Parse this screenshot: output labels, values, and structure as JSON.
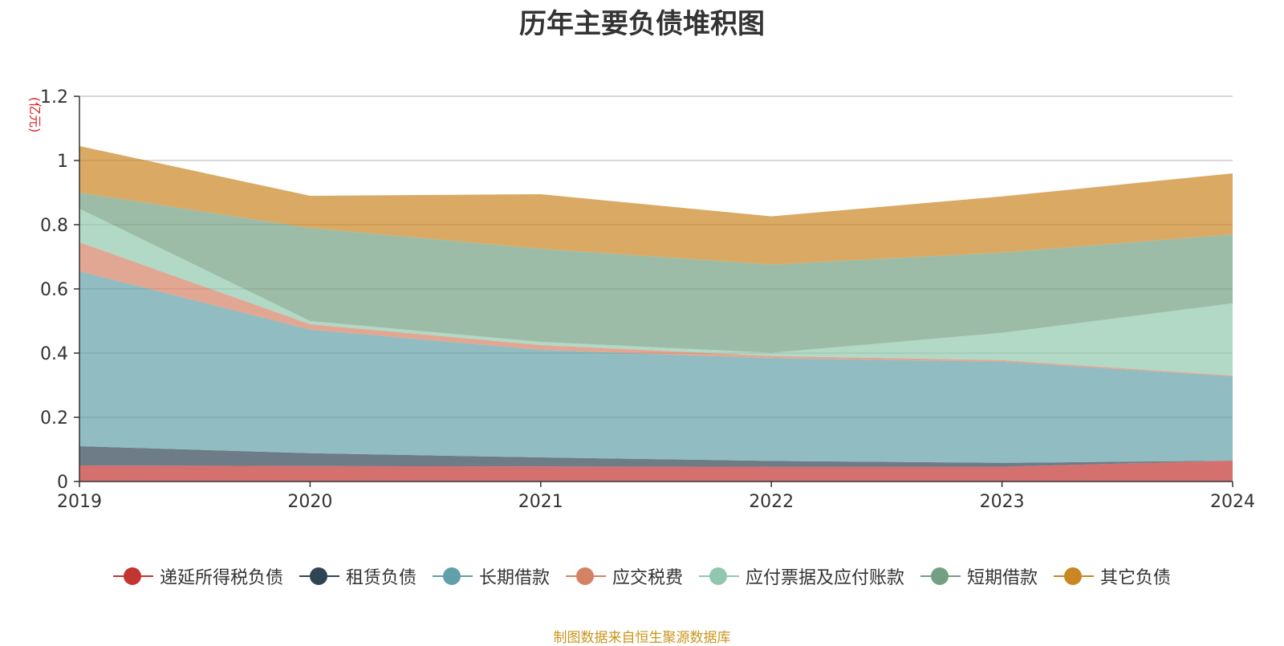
{
  "chart_data": {
    "type": "area",
    "stacked": true,
    "title": "历年主要负债堆积图",
    "unit_label": "(亿元)",
    "x": [
      "2019",
      "2020",
      "2021",
      "2022",
      "2023",
      "2024"
    ],
    "y_ticks": [
      "0",
      "0.2",
      "0.4",
      "0.6",
      "0.8",
      "1",
      "1.2"
    ],
    "ylim": [
      0,
      1.2
    ],
    "grid": true,
    "legend_position": "bottom",
    "series": [
      {
        "name": "递延所得税负债",
        "color": "#c23531",
        "values": [
          0.05,
          0.048,
          0.047,
          0.046,
          0.046,
          0.065
        ]
      },
      {
        "name": "租赁负债",
        "color": "#2f4554",
        "values": [
          0.06,
          0.04,
          0.028,
          0.018,
          0.012,
          0.0
        ]
      },
      {
        "name": "长期借款",
        "color": "#61a0a8",
        "values": [
          0.545,
          0.385,
          0.335,
          0.32,
          0.315,
          0.262
        ]
      },
      {
        "name": "应交税费",
        "color": "#d48265",
        "values": [
          0.09,
          0.017,
          0.015,
          0.007,
          0.005,
          0.003
        ]
      },
      {
        "name": "应付票据及应付账款",
        "color": "#91c7ae",
        "values": [
          0.105,
          0.01,
          0.01,
          0.01,
          0.085,
          0.225
        ]
      },
      {
        "name": "短期借款",
        "color": "#749f83",
        "values": [
          0.05,
          0.29,
          0.29,
          0.275,
          0.25,
          0.215
        ]
      },
      {
        "name": "其它负债",
        "color": "#ca8622",
        "values": [
          0.145,
          0.1,
          0.17,
          0.15,
          0.175,
          0.19
        ]
      }
    ]
  },
  "source_note": "制图数据来自恒生聚源数据库"
}
